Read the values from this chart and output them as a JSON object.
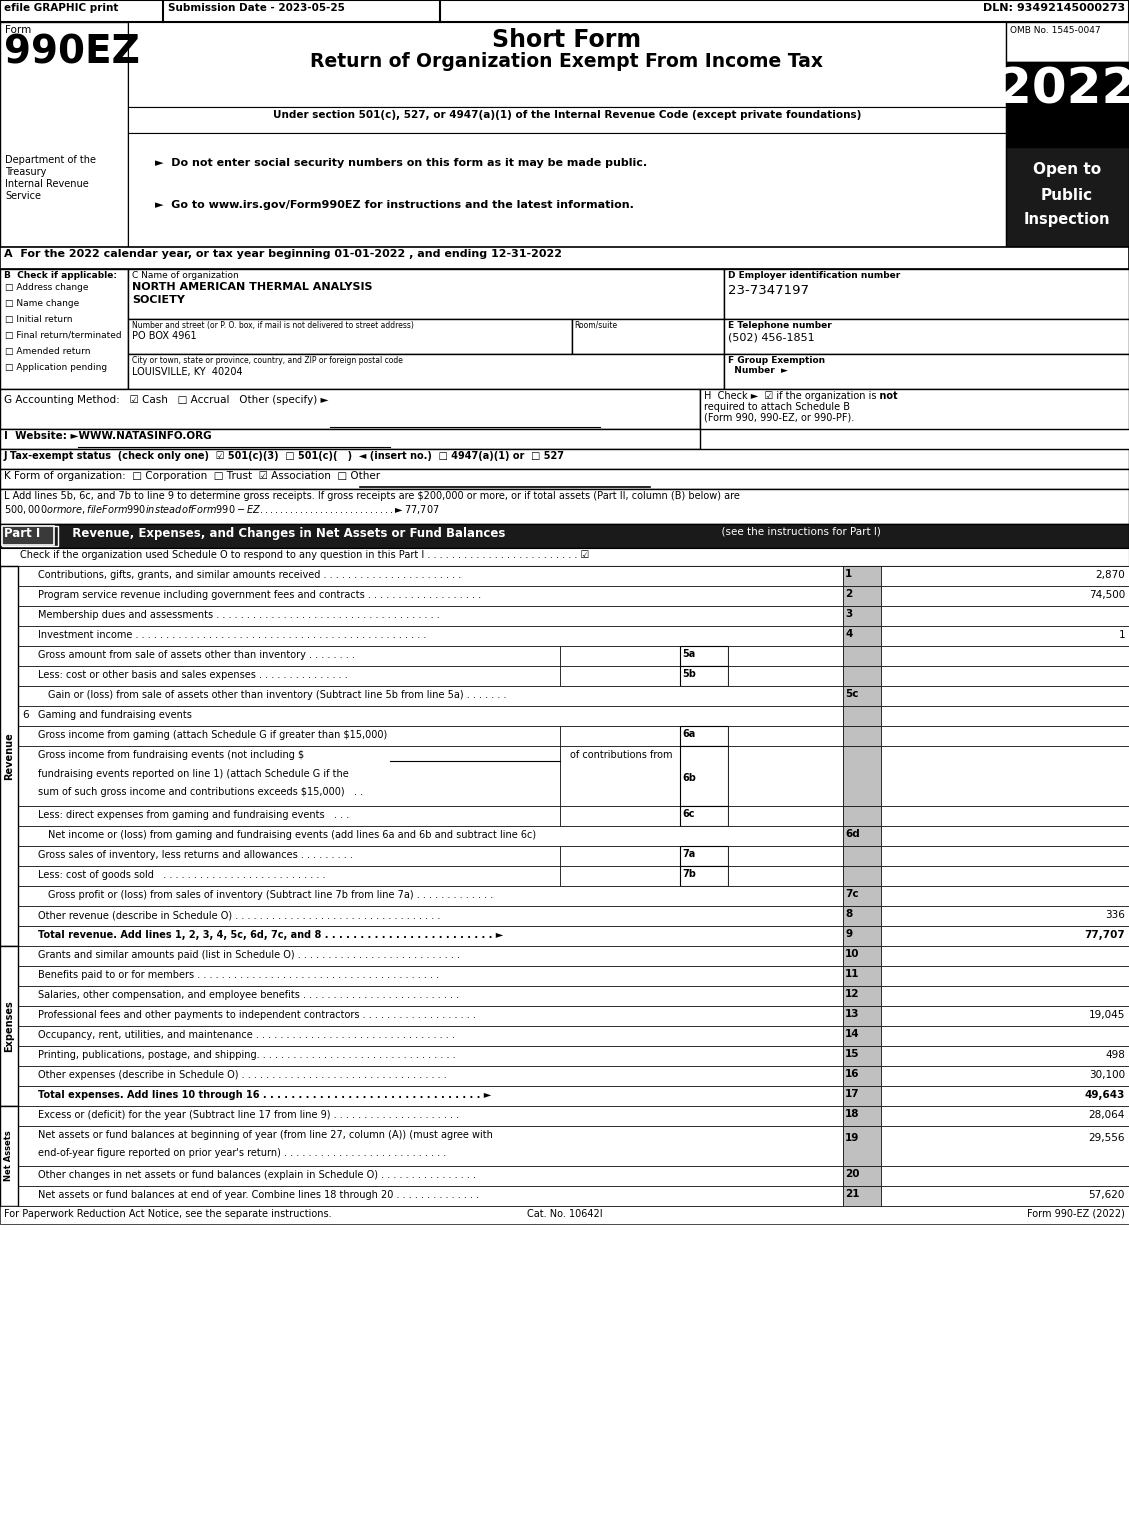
{
  "page_width": 11.29,
  "page_height": 15.25,
  "bg_color": "#ffffff",
  "header_left": "efile GRAPHIC print",
  "header_mid": "Submission Date - 2023-05-25",
  "header_right": "DLN: 93492145000273",
  "form_label": "Form",
  "form_number": "990EZ",
  "title1": "Short Form",
  "title2": "Return of Organization Exempt From Income Tax",
  "subtitle": "Under section 501(c), 527, or 4947(a)(1) of the Internal Revenue Code (except private foundations)",
  "bullet1": "►  Do not enter social security numbers on this form as it may be made public.",
  "bullet2": "►  Go to www.irs.gov/Form990EZ for instructions and the latest information.",
  "dept1": "Department of the",
  "dept2": "Treasury",
  "dept3": "Internal Revenue",
  "dept4": "Service",
  "omb": "OMB No. 1545-0047",
  "year": "2022",
  "open1": "Open to",
  "open2": "Public",
  "open3": "Inspection",
  "section_a": "A  For the 2022 calendar year, or tax year beginning 01-01-2022 , and ending 12-31-2022",
  "b_label": "B  Check if applicable:",
  "checkboxes": [
    "Address change",
    "Name change",
    "Initial return",
    "Final return/terminated",
    "Amended return",
    "Application pending"
  ],
  "c_label": "C Name of organization",
  "org_name1": "NORTH AMERICAN THERMAL ANALYSIS",
  "org_name2": "SOCIETY",
  "street_label": "Number and street (or P. O. box, if mail is not delivered to street address)",
  "room_label": "Room/suite",
  "street": "PO BOX 4961",
  "city_label": "City or town, state or province, country, and ZIP or foreign postal code",
  "city": "LOUISVILLE, KY  40204",
  "d_label": "D Employer identification number",
  "ein": "23-7347197",
  "e_label": "E Telephone number",
  "phone": "(502) 456-1851",
  "f_label": "F Group Exemption",
  "f_label2": "  Number  ►",
  "g_text": "G Accounting Method:   ☑ Cash   □ Accrual   Other (specify) ►",
  "h_line1": "H  Check ►  ☑ if the organization is",
  "h_not": "not",
  "h_line2": "required to attach Schedule B",
  "h_line3": "(Form 990, 990-EZ, or 990-PF).",
  "i_text": "I  Website: ►WWW.NATASINFO.ORG",
  "j_text": "J Tax-exempt status  (check only one)  ☑ 501(c)(3)  □ 501(c)(   )  ◄ (insert no.)  □ 4947(a)(1) or  □ 527",
  "k_text": "K Form of organization:  □ Corporation  □ Trust  ☑ Association  □ Other",
  "l_line1": "L Add lines 5b, 6c, and 7b to line 9 to determine gross receipts. If gross receipts are $200,000 or more, or if total assets (Part II, column (B) below) are",
  "l_line2": "$500,000 or more, file Form 990 instead of Form 990-EZ . . . . . . . . . . . . . . . . . . . . . . . . . . . ►$ 77,707",
  "part1_title": "Revenue, Expenses, and Changes in Net Assets or Fund Balances",
  "part1_sub": "(see the instructions for Part I)",
  "part1_check": "Check if the organization used Schedule O to respond to any question in this Part I . . . . . . . . . . . . . . . . . . . . . . . . . ☑",
  "footer_left": "For Paperwork Reduction Act Notice, see the separate instructions.",
  "footer_cat": "Cat. No. 10642I",
  "footer_right": "Form 990-EZ (2022)",
  "shaded": "#c0c0c0"
}
